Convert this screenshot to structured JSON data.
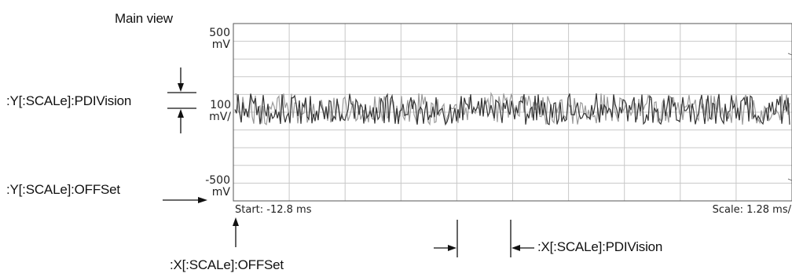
{
  "view_title": "Main view",
  "y_axis": {
    "top_value": "500",
    "top_unit": "mV",
    "mid_value": "100",
    "mid_unit": "mV/",
    "bottom_value": "-500",
    "bottom_unit": "mV"
  },
  "x_axis": {
    "start_text": "Start: -12.8 ms",
    "scale_text": "Scale: 1.28 ms/"
  },
  "callouts": {
    "y_pdivision": ":Y[:SCALe]:PDIVision",
    "y_offset": ":Y[:SCALe]:OFFSet",
    "x_offset": ":X[:SCALe]:OFFSet",
    "x_pdivision": ":X[:SCALe]:PDIVision"
  },
  "colors": {
    "grid": "#c8c8c8",
    "trace_dark": "#333333",
    "trace_light": "#9a9a9a"
  }
}
